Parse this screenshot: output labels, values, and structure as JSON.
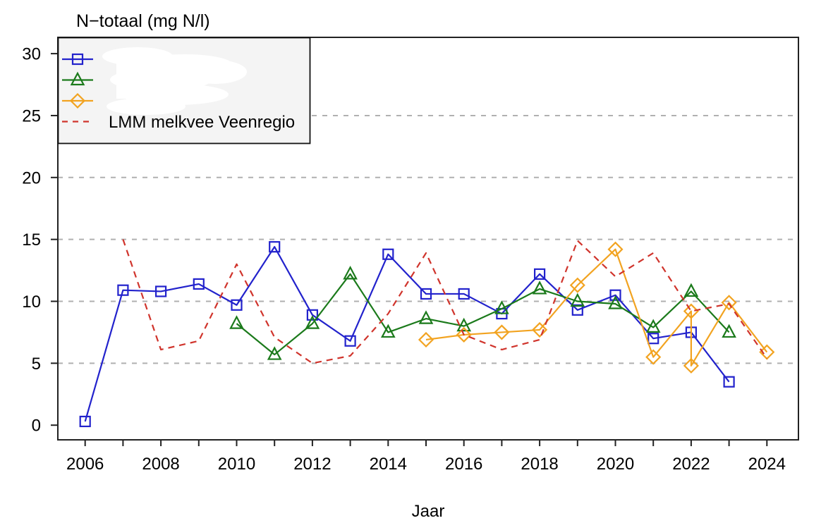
{
  "chart_data": {
    "type": "line",
    "title": "N−totaal (mg N/l)",
    "xlabel": "Jaar",
    "ylabel": "N−totaal (mg N/l)",
    "x_axis": {
      "tick_years": [
        2006,
        2007,
        2008,
        2009,
        2010,
        2011,
        2012,
        2013,
        2014,
        2015,
        2016,
        2017,
        2018,
        2019,
        2020,
        2021,
        2022,
        2023,
        2024
      ],
      "labeled_years": [
        "2006",
        "2008",
        "2010",
        "2012",
        "2014",
        "2016",
        "2018",
        "2020",
        "2022",
        "2024"
      ],
      "range": [
        2005.3,
        2024.9
      ]
    },
    "y_axis": {
      "ticks": [
        "0",
        "5",
        "10",
        "15",
        "20",
        "25",
        "30"
      ],
      "tick_values": [
        0,
        5,
        10,
        15,
        20,
        25,
        30
      ],
      "gridline_values": [
        5,
        10,
        15,
        20,
        25
      ],
      "range": [
        0,
        31
      ]
    },
    "grid": {
      "style": "dashed",
      "color": "#b0b0b0",
      "orientation": "horizontal"
    },
    "colors": {
      "series1_blue": "#2222cc",
      "series2_green": "#1b7a1b",
      "series3_orange": "#f2a320",
      "series4_red": "#d0342c",
      "axis": "#222222",
      "legend_bg": "#f4f4f4"
    },
    "legend": {
      "position": "topleft",
      "entries": [
        {
          "id": "series-1",
          "label": "",
          "obscured": true,
          "symbol": "square",
          "line": "solid",
          "color": "#2222cc"
        },
        {
          "id": "series-2",
          "label": "",
          "obscured": true,
          "symbol": "triangle",
          "line": "solid",
          "color": "#1b7a1b"
        },
        {
          "id": "series-3",
          "label": "",
          "obscured": true,
          "symbol": "diamond",
          "line": "solid",
          "color": "#f2a320"
        },
        {
          "id": "lmm-melkvee-veenregio",
          "label": "LMM melkvee Veenregio",
          "obscured": false,
          "symbol": "none",
          "line": "dashed",
          "color": "#d0342c"
        }
      ]
    },
    "series": [
      {
        "id": "series-1",
        "label_obscured": true,
        "color": "#2222cc",
        "marker": "square",
        "line": "solid",
        "points": [
          [
            2006,
            0.3
          ],
          [
            2007,
            10.9
          ],
          [
            2008,
            10.8
          ],
          [
            2009,
            11.4
          ],
          [
            2010,
            9.7
          ],
          [
            2011,
            14.4
          ],
          [
            2012,
            8.9
          ],
          [
            2013,
            6.8
          ],
          [
            2014,
            13.8
          ],
          [
            2015,
            10.6
          ],
          [
            2016,
            10.6
          ],
          [
            2017,
            9.0
          ],
          [
            2018,
            12.2
          ],
          [
            2019,
            9.3
          ],
          [
            2020,
            10.5
          ],
          [
            2021,
            7.0
          ],
          [
            2022,
            7.5
          ],
          [
            2023,
            3.5
          ]
        ]
      },
      {
        "id": "series-2",
        "label_obscured": true,
        "color": "#1b7a1b",
        "marker": "triangle",
        "line": "solid",
        "points": [
          [
            2010,
            8.2
          ],
          [
            2011,
            5.7
          ],
          [
            2012,
            8.2
          ],
          [
            2013,
            12.2
          ],
          [
            2014,
            7.5
          ],
          [
            2015,
            8.6
          ],
          [
            2016,
            8.0
          ],
          [
            2017,
            9.4
          ],
          [
            2018,
            11.0
          ],
          [
            2019,
            10.0
          ],
          [
            2020,
            9.8
          ],
          [
            2021,
            7.9
          ],
          [
            2022,
            10.8
          ],
          [
            2023,
            7.5
          ]
        ]
      },
      {
        "id": "series-3",
        "label_obscured": true,
        "color": "#f2a320",
        "marker": "diamond",
        "line": "solid",
        "points": [
          [
            2015,
            6.9
          ],
          [
            2016,
            7.3
          ],
          [
            2017,
            7.5
          ],
          [
            2018,
            7.7
          ],
          [
            2019,
            11.3
          ],
          [
            2020,
            14.2
          ],
          [
            2021,
            5.5
          ],
          [
            2022,
            9.2
          ],
          [
            2022,
            4.8
          ],
          [
            2023,
            9.9
          ],
          [
            2024,
            5.9
          ]
        ]
      },
      {
        "id": "lmm-melkvee-veenregio",
        "label": "LMM melkvee Veenregio",
        "color": "#d0342c",
        "marker": "none",
        "line": "dashed",
        "points": [
          [
            2007,
            15.0
          ],
          [
            2008,
            6.1
          ],
          [
            2009,
            6.8
          ],
          [
            2010,
            13.0
          ],
          [
            2011,
            7.1
          ],
          [
            2012,
            5.0
          ],
          [
            2013,
            5.6
          ],
          [
            2014,
            9.0
          ],
          [
            2015,
            13.9
          ],
          [
            2016,
            7.3
          ],
          [
            2017,
            6.1
          ],
          [
            2018,
            6.9
          ],
          [
            2019,
            14.9
          ],
          [
            2020,
            12.0
          ],
          [
            2021,
            13.9
          ],
          [
            2022,
            9.2
          ],
          [
            2023,
            9.8
          ],
          [
            2024,
            5.4
          ]
        ]
      }
    ]
  }
}
